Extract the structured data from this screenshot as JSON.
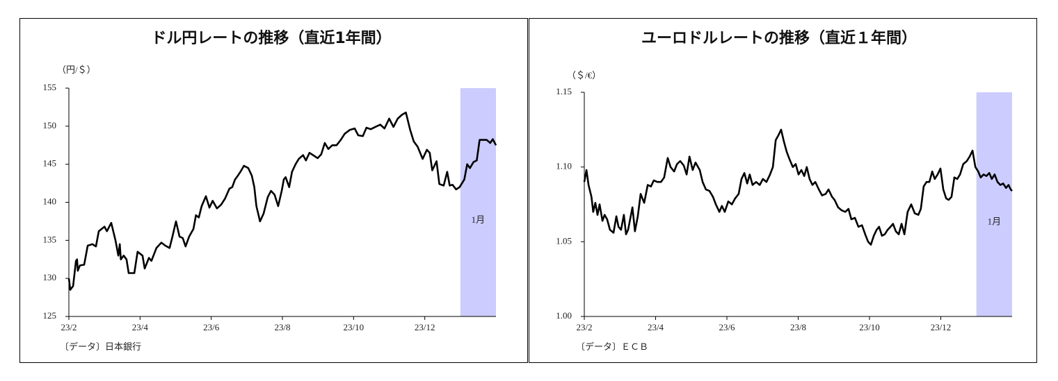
{
  "chart_data": [
    {
      "type": "line",
      "title": "ドル円レートの推移（直近1年間）",
      "y_unit": "（円/＄）",
      "source": "〔データ〕日本銀行",
      "shade": {
        "xrange": [
          11,
          12
        ],
        "label": "1月",
        "color": "#ccccff"
      },
      "xlim": [
        0,
        12
      ],
      "xticks": [
        {
          "value": 0,
          "label": "23/2"
        },
        {
          "value": 2,
          "label": "23/4"
        },
        {
          "value": 4,
          "label": "23/6"
        },
        {
          "value": 6,
          "label": "23/8"
        },
        {
          "value": 8,
          "label": "23/10"
        },
        {
          "value": 10,
          "label": "23/12"
        }
      ],
      "ylim": [
        125,
        155
      ],
      "yticks": [
        125,
        130,
        135,
        140,
        145,
        150,
        155
      ],
      "x": [
        0,
        0.04,
        0.12,
        0.2,
        0.23,
        0.25,
        0.31,
        0.43,
        0.53,
        0.66,
        0.76,
        0.84,
        1.0,
        1.07,
        1.19,
        1.31,
        1.39,
        1.43,
        1.46,
        1.54,
        1.62,
        1.68,
        1.84,
        1.93,
        2.07,
        2.13,
        2.25,
        2.32,
        2.46,
        2.6,
        2.71,
        2.83,
        2.91,
        3.01,
        3.11,
        3.2,
        3.28,
        3.38,
        3.5,
        3.57,
        3.65,
        3.73,
        3.85,
        3.95,
        4.04,
        4.16,
        4.28,
        4.39,
        4.51,
        4.59,
        4.67,
        4.75,
        4.82,
        4.92,
        5.04,
        5.14,
        5.21,
        5.27,
        5.37,
        5.47,
        5.59,
        5.68,
        5.78,
        5.88,
        5.98,
        6.04,
        6.09,
        6.19,
        6.27,
        6.37,
        6.46,
        6.58,
        6.66,
        6.76,
        6.86,
        6.99,
        7.09,
        7.19,
        7.29,
        7.4,
        7.52,
        7.64,
        7.75,
        7.89,
        8.03,
        8.13,
        8.26,
        8.36,
        8.48,
        8.61,
        8.75,
        8.87,
        9.0,
        9.12,
        9.24,
        9.36,
        9.47,
        9.59,
        9.69,
        9.8,
        9.94,
        10.06,
        10.14,
        10.21,
        10.33,
        10.41,
        10.53,
        10.63,
        10.7,
        10.78,
        10.88,
        10.98,
        11.11,
        11.19,
        11.27,
        11.37,
        11.46,
        11.54,
        11.74,
        11.84,
        11.91,
        12.0
      ],
      "series": [
        {
          "color": "#000000",
          "values": [
            130,
            128.5,
            129,
            132.3,
            132.5,
            131,
            131.7,
            131.8,
            134.3,
            134.5,
            134.2,
            136.2,
            136.8,
            136.2,
            137.3,
            135,
            133,
            134.5,
            132.5,
            133,
            132.5,
            130.7,
            130.7,
            133.5,
            133,
            131.3,
            132.7,
            132.3,
            134,
            134.7,
            134.3,
            134,
            135.5,
            137.5,
            135.5,
            135.3,
            134.2,
            135.5,
            136.5,
            138.3,
            138,
            139.5,
            140.8,
            139.3,
            140.2,
            139.2,
            139.7,
            140.5,
            141.8,
            142,
            143,
            143.5,
            144,
            144.8,
            144.5,
            143.5,
            142,
            139.5,
            137.5,
            138.5,
            140.7,
            141.5,
            141,
            139.5,
            141.5,
            143,
            143.3,
            142,
            144,
            145,
            145.7,
            146.2,
            145.5,
            146.5,
            146.2,
            145.8,
            146.3,
            147.8,
            147,
            147.5,
            147.5,
            148.2,
            149,
            149.5,
            149.7,
            148.8,
            148.7,
            149.8,
            149.6,
            149.9,
            150.2,
            149.7,
            151,
            149.9,
            151,
            151.5,
            151.8,
            149.5,
            148,
            147.3,
            145.7,
            146.9,
            146.5,
            144.2,
            145.4,
            142.4,
            142.2,
            144,
            142.2,
            142.3,
            141.7,
            142.0,
            143,
            145,
            144.5,
            145.3,
            145.5,
            148.2,
            148.2,
            147.8,
            148.3,
            147.5
          ]
        }
      ]
    },
    {
      "type": "line",
      "title": "ユーロドルレートの推移（直近１年間）",
      "y_unit": "（＄/€）",
      "source": "〔データ〕ＥＣＢ",
      "shade": {
        "xrange": [
          11,
          12
        ],
        "label": "1月",
        "color": "#ccccff"
      },
      "xlim": [
        0,
        12
      ],
      "xticks": [
        {
          "value": 0,
          "label": "23/2"
        },
        {
          "value": 2,
          "label": "23/4"
        },
        {
          "value": 4,
          "label": "23/6"
        },
        {
          "value": 6,
          "label": "23/8"
        },
        {
          "value": 8,
          "label": "23/10"
        },
        {
          "value": 10,
          "label": "23/12"
        }
      ],
      "ylim": [
        1.0,
        1.15
      ],
      "yticks": [
        {
          "value": 1.0,
          "label": "1.00"
        },
        1.05,
        {
          "value": 1.1,
          "label": "1.10"
        },
        1.15
      ],
      "x": [
        0,
        0.06,
        0.12,
        0.2,
        0.25,
        0.31,
        0.37,
        0.43,
        0.51,
        0.57,
        0.64,
        0.72,
        0.82,
        0.9,
        0.96,
        1.03,
        1.11,
        1.17,
        1.23,
        1.35,
        1.42,
        1.5,
        1.58,
        1.68,
        1.78,
        1.87,
        1.95,
        2.05,
        2.15,
        2.24,
        2.34,
        2.42,
        2.52,
        2.6,
        2.69,
        2.79,
        2.87,
        2.95,
        3.04,
        3.12,
        3.24,
        3.32,
        3.41,
        3.51,
        3.61,
        3.69,
        3.79,
        3.86,
        3.94,
        4.04,
        4.14,
        4.23,
        4.33,
        4.41,
        4.49,
        4.57,
        4.64,
        4.72,
        4.82,
        4.92,
        5.01,
        5.11,
        5.21,
        5.29,
        5.37,
        5.44,
        5.52,
        5.6,
        5.68,
        5.76,
        5.85,
        5.93,
        6.01,
        6.09,
        6.17,
        6.24,
        6.32,
        6.4,
        6.48,
        6.58,
        6.67,
        6.77,
        6.85,
        6.95,
        7.02,
        7.12,
        7.22,
        7.32,
        7.41,
        7.49,
        7.59,
        7.69,
        7.79,
        7.88,
        7.96,
        8.04,
        8.12,
        8.2,
        8.27,
        8.35,
        8.43,
        8.51,
        8.59,
        8.66,
        8.74,
        8.82,
        8.9,
        8.98,
        9.07,
        9.17,
        9.27,
        9.37,
        9.44,
        9.52,
        9.6,
        9.68,
        9.76,
        9.83,
        9.91,
        9.99,
        10.07,
        10.15,
        10.22,
        10.3,
        10.38,
        10.46,
        10.54,
        10.63,
        10.73,
        10.81,
        10.89,
        10.97,
        11.05,
        11.12,
        11.2,
        11.28,
        11.36,
        11.43,
        11.51,
        11.59,
        11.67,
        11.75,
        11.83,
        11.9,
        11.96,
        12.0
      ],
      "series": [
        {
          "color": "#000000",
          "values": [
            1.09,
            1.098,
            1.088,
            1.08,
            1.07,
            1.076,
            1.068,
            1.075,
            1.064,
            1.068,
            1.065,
            1.058,
            1.056,
            1.067,
            1.06,
            1.058,
            1.068,
            1.055,
            1.058,
            1.073,
            1.057,
            1.067,
            1.082,
            1.076,
            1.088,
            1.087,
            1.091,
            1.09,
            1.09,
            1.093,
            1.106,
            1.1,
            1.097,
            1.102,
            1.104,
            1.101,
            1.095,
            1.107,
            1.098,
            1.103,
            1.098,
            1.09,
            1.085,
            1.084,
            1.08,
            1.075,
            1.07,
            1.074,
            1.07,
            1.077,
            1.075,
            1.079,
            1.082,
            1.092,
            1.096,
            1.089,
            1.095,
            1.088,
            1.09,
            1.088,
            1.092,
            1.09,
            1.095,
            1.1,
            1.118,
            1.121,
            1.125,
            1.117,
            1.11,
            1.105,
            1.1,
            1.102,
            1.095,
            1.098,
            1.094,
            1.1,
            1.092,
            1.088,
            1.09,
            1.085,
            1.081,
            1.082,
            1.085,
            1.08,
            1.078,
            1.073,
            1.071,
            1.07,
            1.072,
            1.065,
            1.066,
            1.06,
            1.061,
            1.055,
            1.05,
            1.048,
            1.054,
            1.058,
            1.06,
            1.054,
            1.055,
            1.058,
            1.06,
            1.062,
            1.057,
            1.055,
            1.062,
            1.055,
            1.07,
            1.075,
            1.069,
            1.068,
            1.072,
            1.087,
            1.09,
            1.09,
            1.097,
            1.092,
            1.095,
            1.099,
            1.085,
            1.079,
            1.078,
            1.08,
            1.093,
            1.092,
            1.095,
            1.102,
            1.104,
            1.107,
            1.111,
            1.1,
            1.097,
            1.093,
            1.095,
            1.094,
            1.096,
            1.092,
            1.095,
            1.09,
            1.088,
            1.089,
            1.086,
            1.088,
            1.085,
            1.084
          ]
        }
      ]
    }
  ]
}
